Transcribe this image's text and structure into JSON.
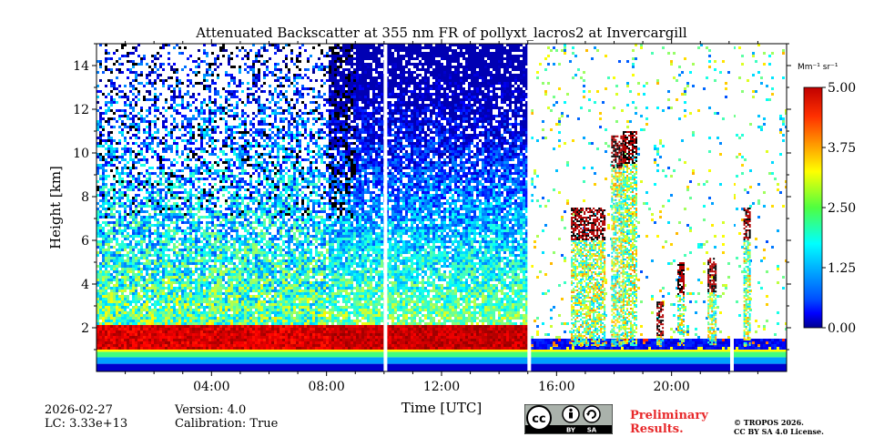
{
  "chart_data": {
    "type": "heatmap",
    "title": "Attenuated Backscatter at 355 nm FR of pollyxt_lacros2 at Invercargill",
    "xlabel": "Time [UTC]",
    "ylabel": "Height [km]",
    "xlim": [
      0,
      24
    ],
    "ylim": [
      0,
      15
    ],
    "x_ticks": [
      4,
      8,
      12,
      16,
      20
    ],
    "x_tick_labels": [
      "04:00",
      "08:00",
      "12:00",
      "16:00",
      "20:00"
    ],
    "y_ticks": [
      2,
      4,
      6,
      8,
      10,
      12,
      14
    ],
    "y_tick_labels": [
      "2",
      "4",
      "6",
      "8",
      "10",
      "12",
      "14"
    ],
    "colorbar": {
      "label": "Mm⁻¹ sr⁻¹",
      "range": [
        0,
        5
      ],
      "ticks": [
        0,
        1.25,
        2.5,
        3.75,
        5
      ],
      "tick_labels": [
        "0.00",
        "1.25",
        "2.50",
        "3.75",
        "5.00"
      ],
      "colormap": "jet"
    },
    "data_gaps_hours": [
      10.05,
      15.05,
      22.1
    ],
    "description_segments": [
      {
        "start": 0,
        "end": 8,
        "regime": "aerosol layers, high values below 2 km, noisy aloft"
      },
      {
        "start": 8,
        "end": 15,
        "regime": "lower values aloft to 15 km"
      },
      {
        "start": 15,
        "end": 24,
        "regime": "mostly clear with scattered cloud columns near 18.5 h"
      }
    ]
  },
  "footer": {
    "date": "2026-02-27",
    "lidar_constant": "LC: 3.33e+13",
    "version": "Version: 4.0",
    "calibration": "Calibration: True",
    "preliminary_line1": "Preliminary",
    "preliminary_line2": "Results.",
    "copyright_line1": "© TROPOS 2026.",
    "copyright_line2": "CC BY SA 4.0 License.",
    "license_badge": [
      "BY",
      "SA"
    ]
  },
  "colors": {
    "preliminary": "#e8292b",
    "axis": "#000000"
  }
}
